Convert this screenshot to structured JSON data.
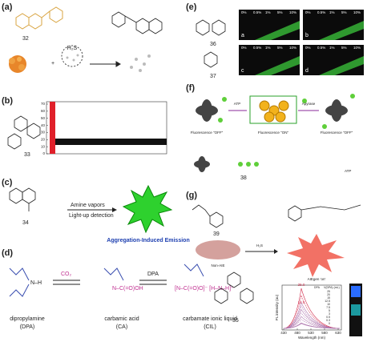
{
  "a": {
    "label": "(a)",
    "compound": "32",
    "reagent": "H₂S"
  },
  "b": {
    "label": "(b)",
    "compound": "33",
    "yticks": [
      0,
      10,
      20,
      30,
      40,
      50,
      60,
      70
    ]
  },
  "c": {
    "label": "(c)",
    "compound": "34",
    "step1": "Amine vapors",
    "step2": "Light-up detection",
    "caption": "Aggregation-Induced Emission"
  },
  "d": {
    "label": "(d)",
    "gas": "CO₂",
    "amine": "DPA",
    "names": [
      "dipropylamine",
      "carbamic acid",
      "carbamate ionic liquid"
    ],
    "abbr": [
      "(DPA)",
      "(CA)",
      "(CIL)"
    ],
    "compound": "35"
  },
  "e": {
    "label": "(e)",
    "compounds": [
      "36",
      "37"
    ],
    "fractions": [
      "0%",
      "0.5%",
      "1%",
      "5%",
      "10%"
    ],
    "images": [
      "a",
      "b",
      "c",
      "d"
    ]
  },
  "f": {
    "label": "(f)",
    "trigger": "ATP",
    "enzyme": "Apyrase",
    "states": [
      "Fluorescence \"OFF\"",
      "Fluorescence \"ON\"",
      "Fluorescence \"OFF\""
    ],
    "compound": "38",
    "legend": "ATP"
  },
  "g": {
    "label": "(g)",
    "compound": "39",
    "left": "Non-AIE",
    "reagent": "H₂S",
    "right": "AIEgen 'on'",
    "chart": {
      "ylabel": "PL intensity (au)",
      "xlabel": "Wavelength (nm)",
      "legend_title": "V(DPA) (mL)",
      "legend_sub": "DPA",
      "levels": [
        25.0,
        20.0,
        15.0,
        12.5,
        10.0,
        7.5,
        5.0,
        3.0,
        0.5,
        0.3,
        0
      ],
      "peak_labels": [
        "25.0",
        "12.5"
      ],
      "xticks": [
        430,
        480,
        530,
        580,
        630
      ],
      "strip": [
        25,
        10,
        0
      ]
    }
  }
}
